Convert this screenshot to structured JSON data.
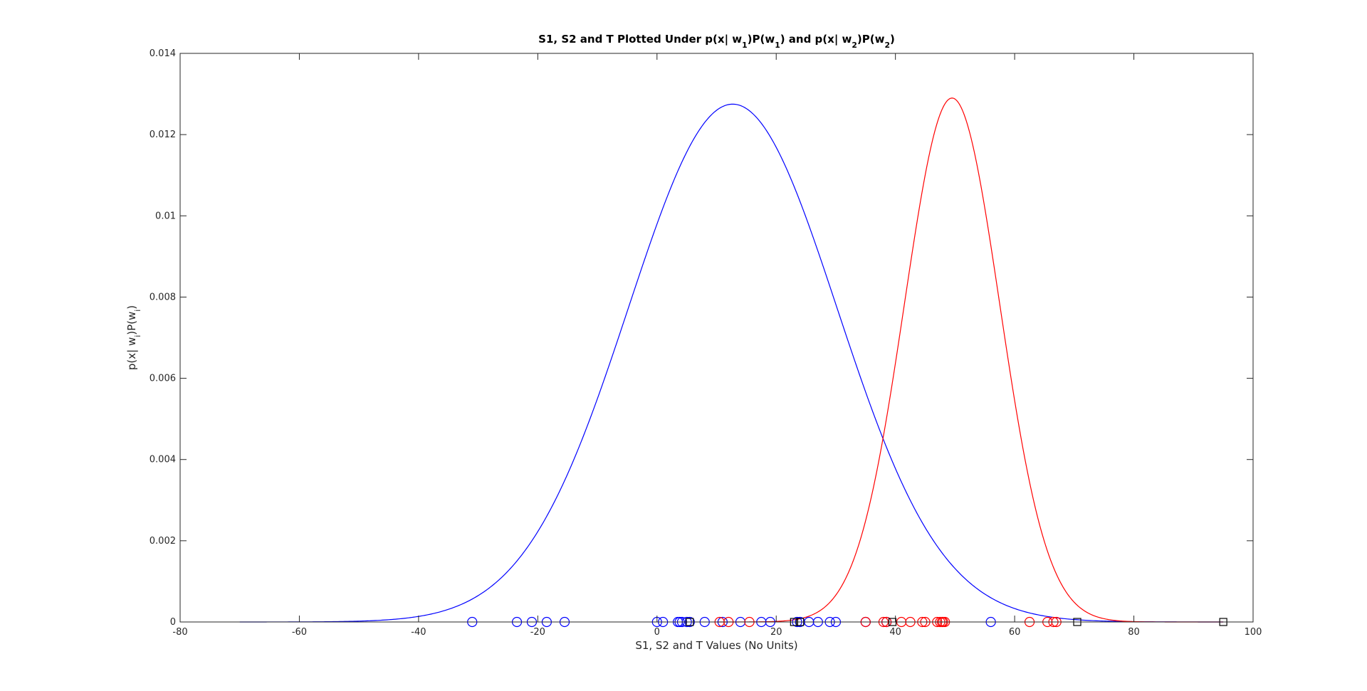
{
  "chart_data": {
    "type": "line",
    "title": "S1, S2 and T Plotted Under p(x| w1)P(w1) and p(x| w2)P(w2)",
    "title_parts": [
      {
        "t": "S1, S2 and T Plotted Under p(x| w",
        "sub": false
      },
      {
        "t": "1",
        "sub": true
      },
      {
        "t": ")P(w",
        "sub": false
      },
      {
        "t": "1",
        "sub": true
      },
      {
        "t": ") and p(x| w",
        "sub": false
      },
      {
        "t": "2",
        "sub": true
      },
      {
        "t": ")P(w",
        "sub": false
      },
      {
        "t": "2",
        "sub": true
      },
      {
        "t": ")",
        "sub": false
      }
    ],
    "xlabel": "S1, S2 and T Values (No Units)",
    "ylabel_parts": [
      {
        "t": "p(x| w",
        "sub": false
      },
      {
        "t": "i",
        "sub": true
      },
      {
        "t": ")P(w",
        "sub": false
      },
      {
        "t": "i",
        "sub": true
      },
      {
        "t": ")",
        "sub": false
      }
    ],
    "xlim": [
      -80,
      100
    ],
    "ylim": [
      0,
      0.014
    ],
    "xticks": [
      -80,
      -60,
      -40,
      -20,
      0,
      20,
      40,
      60,
      80,
      100
    ],
    "yticks": [
      0,
      0.002,
      0.004,
      0.006,
      0.008,
      0.01,
      0.012,
      0.014
    ],
    "ytick_labels": [
      "0",
      "0.002",
      "0.004",
      "0.006",
      "0.008",
      "0.01",
      "0.012",
      "0.014"
    ],
    "grid": false,
    "curves": [
      {
        "color": "#0000ff",
        "mu": 12.7,
        "sigma": 17.5,
        "peak": 0.01275,
        "x_range": [
          -70,
          95
        ]
      },
      {
        "color": "#ff0000",
        "mu": 49.5,
        "sigma": 8.0,
        "peak": 0.0129,
        "x_range": [
          10,
          95
        ]
      }
    ],
    "scatter": [
      {
        "marker": "circle",
        "color": "#0000ff",
        "x": [
          -31,
          -23.5,
          -21,
          -18.5,
          -15.5,
          0,
          1,
          3.5,
          3.8,
          4.2,
          5,
          5.5,
          8,
          11,
          14,
          17.5,
          19,
          23.5,
          24,
          25.5,
          27,
          29,
          30,
          35,
          38.5,
          56
        ]
      },
      {
        "marker": "circle",
        "color": "#ff0000",
        "x": [
          10.5,
          12,
          15.5,
          35,
          38,
          38.5,
          41,
          42.5,
          44.5,
          45,
          47,
          47.5,
          47.8,
          48,
          48.3,
          62.5,
          65.5,
          66.5,
          67
        ]
      },
      {
        "marker": "square",
        "color": "#000000",
        "x": [
          5.5,
          23,
          24,
          39.5,
          70.5,
          95
        ]
      }
    ]
  }
}
